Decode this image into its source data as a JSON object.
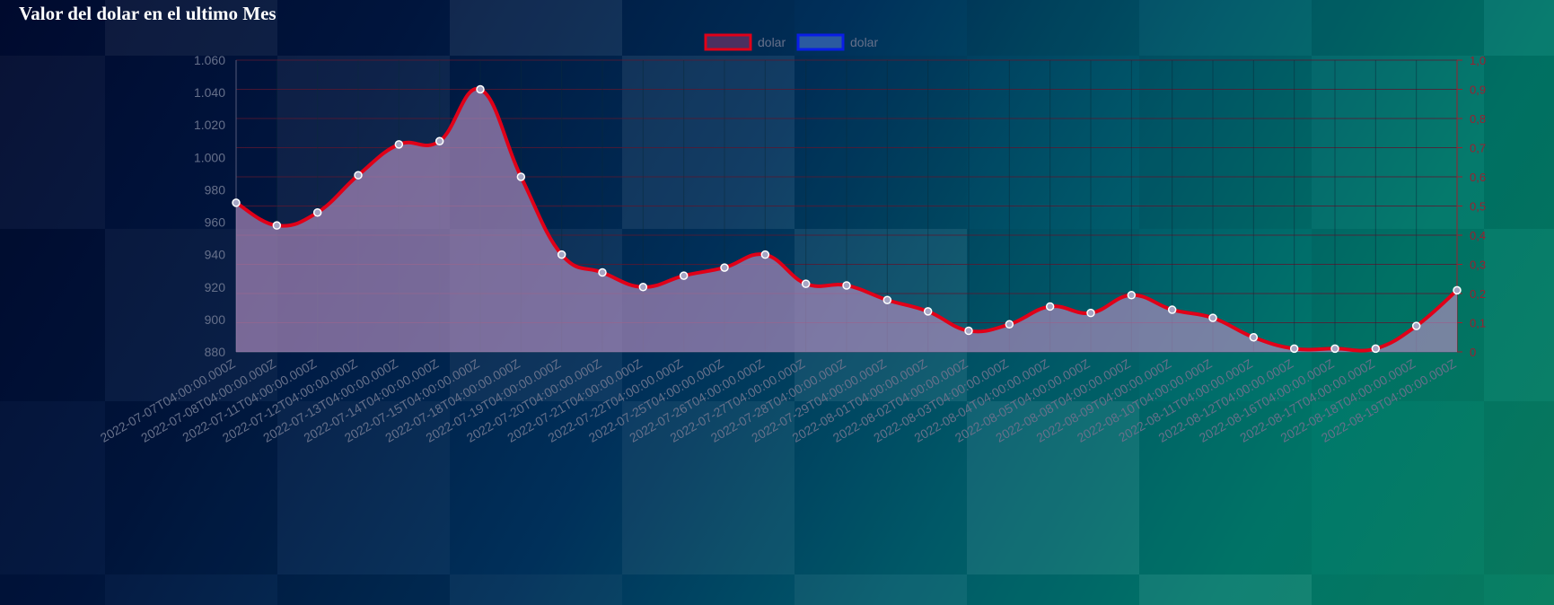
{
  "title": "Valor del dolar en el ultimo Mes",
  "colors": {
    "line": "#e00018",
    "fill": "#b08cbe",
    "legend2_border": "#0a1ee6",
    "legend2_fill": "#2a5aa0",
    "grid": "#5a1830",
    "right_axis": "#9a2030"
  },
  "chart_data": {
    "type": "line",
    "legend": [
      {
        "label": "dolar",
        "color": "#e00018"
      },
      {
        "label": "dolar",
        "color": "#0a1ee6"
      }
    ],
    "categories": [
      "2022-07-07T04:00:00.000Z",
      "2022-07-08T04:00:00.000Z",
      "2022-07-11T04:00:00.000Z",
      "2022-07-12T04:00:00.000Z",
      "2022-07-13T04:00:00.000Z",
      "2022-07-14T04:00:00.000Z",
      "2022-07-15T04:00:00.000Z",
      "2022-07-18T04:00:00.000Z",
      "2022-07-19T04:00:00.000Z",
      "2022-07-20T04:00:00.000Z",
      "2022-07-21T04:00:00.000Z",
      "2022-07-22T04:00:00.000Z",
      "2022-07-25T04:00:00.000Z",
      "2022-07-26T04:00:00.000Z",
      "2022-07-27T04:00:00.000Z",
      "2022-07-28T04:00:00.000Z",
      "2022-07-29T04:00:00.000Z",
      "2022-08-01T04:00:00.000Z",
      "2022-08-02T04:00:00.000Z",
      "2022-08-03T04:00:00.000Z",
      "2022-08-04T04:00:00.000Z",
      "2022-08-05T04:00:00.000Z",
      "2022-08-08T04:00:00.000Z",
      "2022-08-09T04:00:00.000Z",
      "2022-08-10T04:00:00.000Z",
      "2022-08-11T04:00:00.000Z",
      "2022-08-12T04:00:00.000Z",
      "2022-08-16T04:00:00.000Z",
      "2022-08-17T04:00:00.000Z",
      "2022-08-18T04:00:00.000Z",
      "2022-08-19T04:00:00.000Z"
    ],
    "series": [
      {
        "name": "dolar",
        "values": [
          972,
          958,
          966,
          989,
          1008,
          1010,
          1042,
          988,
          940,
          929,
          920,
          927,
          932,
          940,
          922,
          921,
          912,
          905,
          893,
          897,
          908,
          904,
          915,
          906,
          901,
          889,
          882,
          882,
          882,
          896,
          918
        ]
      }
    ],
    "ylim": [
      880,
      1060
    ],
    "yticks": [
      "1.060",
      "1.040",
      "1.020",
      "1.000",
      "980",
      "960",
      "940",
      "920",
      "900",
      "880"
    ],
    "y2lim": [
      0,
      1
    ],
    "y2ticks": [
      "1,0",
      "0,9",
      "0,8",
      "0,7",
      "0,6",
      "0,5",
      "0,4",
      "0,3",
      "0,2",
      "0,1",
      "0"
    ],
    "grid": true,
    "legend_position": "top-center"
  }
}
